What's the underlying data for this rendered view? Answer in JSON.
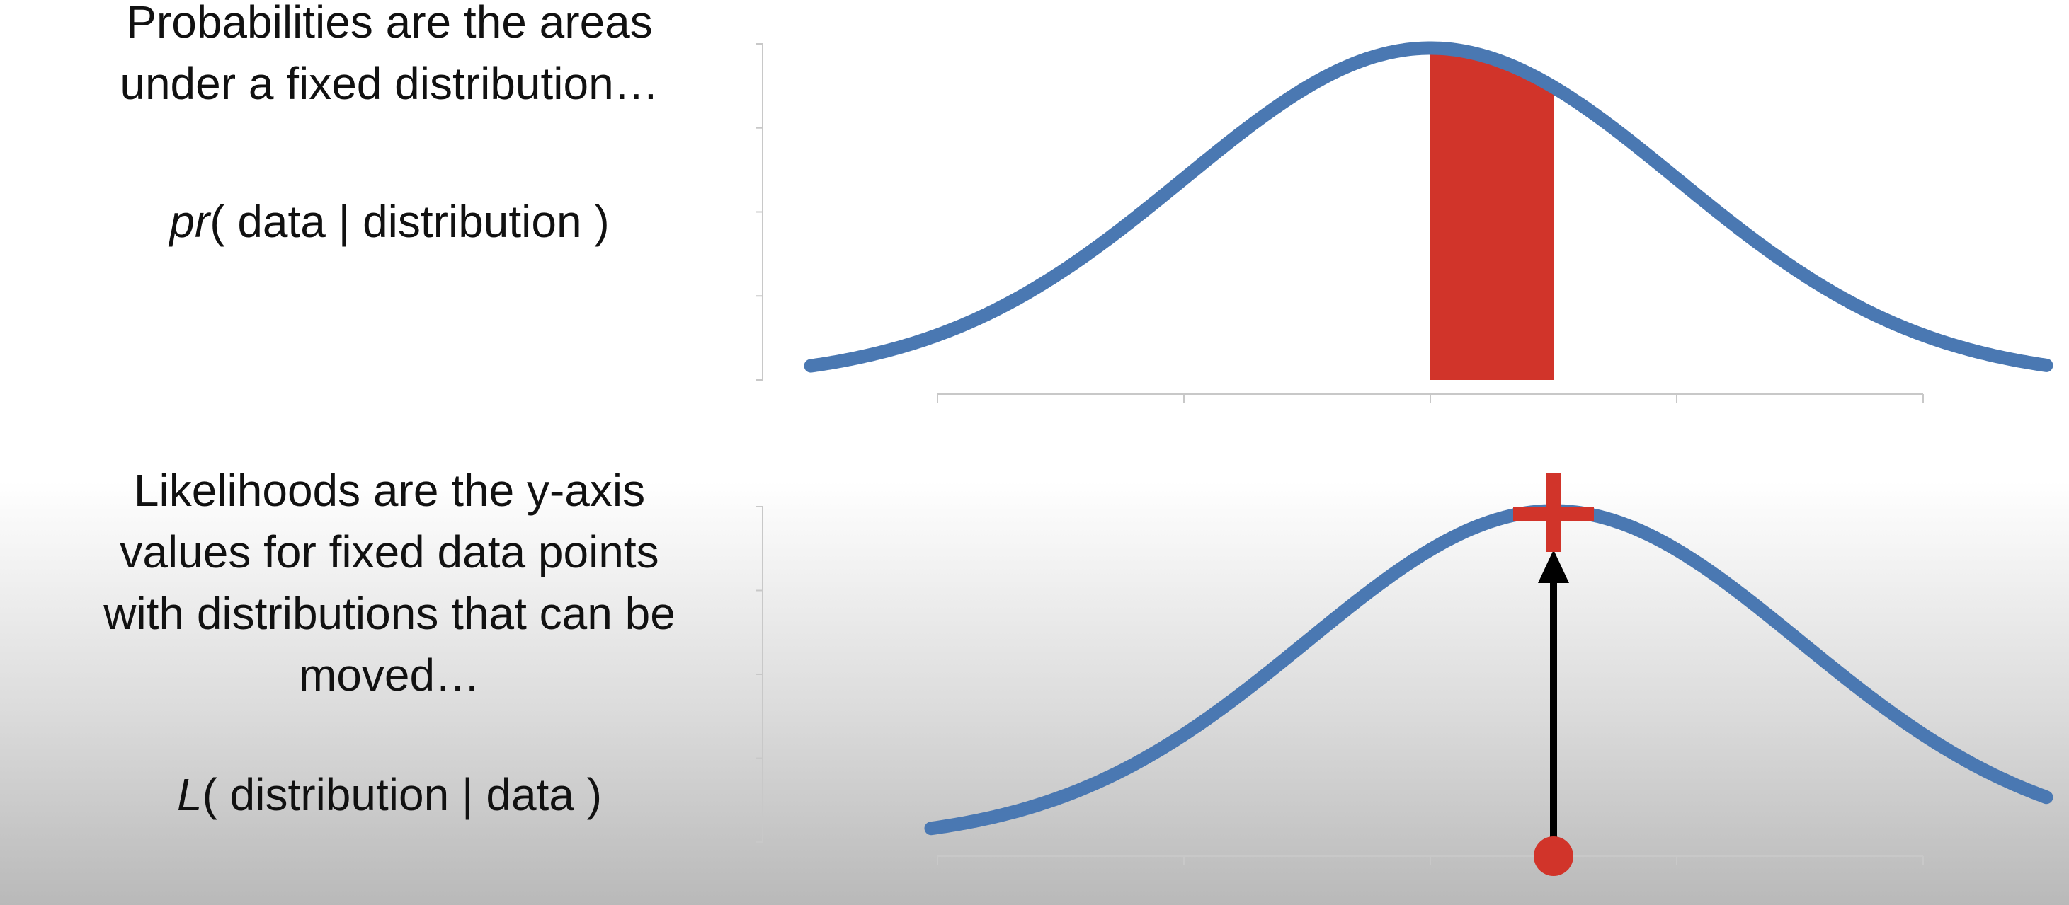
{
  "top_panel": {
    "caption_lines": [
      "Probabilities are the areas",
      "under a fixed distribution…"
    ],
    "formula": {
      "func": "pr",
      "rest": "( data | distribution )"
    }
  },
  "bottom_panel": {
    "caption_lines": [
      "Likelihoods are the y-axis",
      "values for fixed data points",
      "with distributions that can be",
      "moved…"
    ],
    "formula": {
      "func": "L",
      "rest": "( distribution | data )"
    }
  },
  "colors": {
    "curve": "#4a78b2",
    "highlight": "#d1342a",
    "axis": "#c8c8c8",
    "arrow": "#000000"
  },
  "chart_data": [
    {
      "type": "area",
      "description_free": true,
      "distribution": "normal",
      "mean": 0,
      "sd": 1,
      "xlim": [
        -2.5,
        2.5
      ],
      "x_ticks": [
        -2,
        -1,
        0,
        1,
        2
      ],
      "y_ticks": 5,
      "shaded_interval": [
        0,
        0.5
      ],
      "xlabel": "",
      "ylabel": ""
    },
    {
      "type": "line",
      "distribution": "normal",
      "mean": 0.5,
      "sd": 1,
      "xlim": [
        -2,
        2.5
      ],
      "x_ticks": [
        -2,
        -1,
        0,
        1,
        2
      ],
      "y_ticks": 5,
      "data_point_x": 0.5,
      "xlabel": "",
      "ylabel": ""
    }
  ]
}
